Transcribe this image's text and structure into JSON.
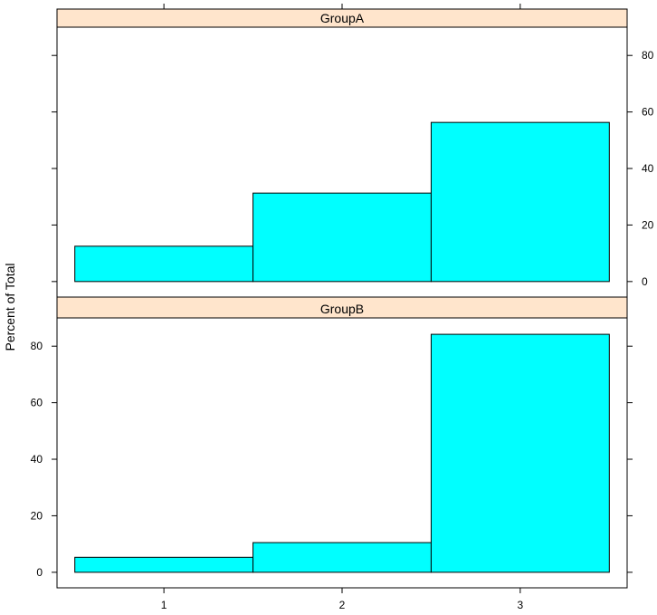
{
  "chart_data": {
    "type": "bar",
    "subtype": "lattice-histogram",
    "ylabel": "Percent of Total",
    "xlabel": "",
    "x_ticks": [
      "1",
      "2",
      "3"
    ],
    "y_ticks": [
      "0",
      "20",
      "40",
      "60",
      "80"
    ],
    "ylim": [
      -5.5,
      90
    ],
    "bar_fill": "#00ffff",
    "strip_fill": "#ffe5cc",
    "panels": [
      {
        "name": "GroupA",
        "bins": [
          {
            "from": 0.5,
            "to": 1.5,
            "value": 12.5
          },
          {
            "from": 1.5,
            "to": 2.5,
            "value": 31.3
          },
          {
            "from": 2.5,
            "to": 3.5,
            "value": 56.3
          }
        ]
      },
      {
        "name": "GroupB",
        "bins": [
          {
            "from": 0.5,
            "to": 1.5,
            "value": 5.3
          },
          {
            "from": 1.5,
            "to": 2.5,
            "value": 10.5
          },
          {
            "from": 2.5,
            "to": 3.5,
            "value": 84.2
          }
        ]
      }
    ]
  }
}
